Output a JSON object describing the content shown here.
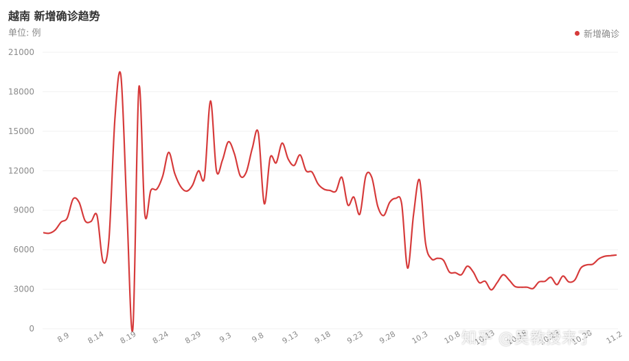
{
  "chart_data": {
    "type": "line",
    "title": "越南 新增确诊趋势",
    "subtitle": "单位: 例",
    "series": [
      {
        "name": "新增确诊",
        "color": "#d63a3a",
        "values": [
          7300,
          7250,
          7500,
          8100,
          8400,
          9850,
          9600,
          8200,
          8150,
          8600,
          5100,
          6800,
          16000,
          19200,
          9000,
          0,
          18300,
          8700,
          10500,
          10600,
          11600,
          13400,
          11800,
          10800,
          10450,
          10900,
          12000,
          11500,
          17300,
          12000,
          12800,
          14200,
          13300,
          11600,
          11900,
          13700,
          14900,
          9500,
          13000,
          12600,
          14100,
          12900,
          12400,
          13200,
          12000,
          11900,
          11000,
          10600,
          10500,
          10450,
          11500,
          9400,
          10000,
          8700,
          11600,
          11500,
          9300,
          8600,
          9600,
          9900,
          9500,
          4600,
          8700,
          11300,
          6500,
          5300,
          5350,
          5200,
          4300,
          4250,
          4100,
          4750,
          4300,
          3500,
          3600,
          2950,
          3500,
          4100,
          3700,
          3200,
          3150,
          3150,
          3050,
          3550,
          3600,
          3900,
          3350,
          4000,
          3550,
          3700,
          4600,
          4850,
          4900,
          5300,
          5500,
          5550,
          5600
        ]
      }
    ],
    "x_labels": [
      "8.9",
      "8.14",
      "8.19",
      "8.24",
      "8.29",
      "9.3",
      "9.8",
      "9.13",
      "9.18",
      "9.23",
      "9.28",
      "10.3",
      "10.8",
      "10.13",
      "10.18",
      "10.23",
      "10.28",
      "11.2"
    ],
    "y_ticks": [
      "0",
      "3000",
      "6000",
      "9000",
      "12000",
      "15000",
      "18000",
      "21000"
    ],
    "ylim": [
      0,
      21000
    ],
    "grid": true,
    "legend_position": "top-right"
  },
  "watermark": "知乎 @吴教授来了"
}
